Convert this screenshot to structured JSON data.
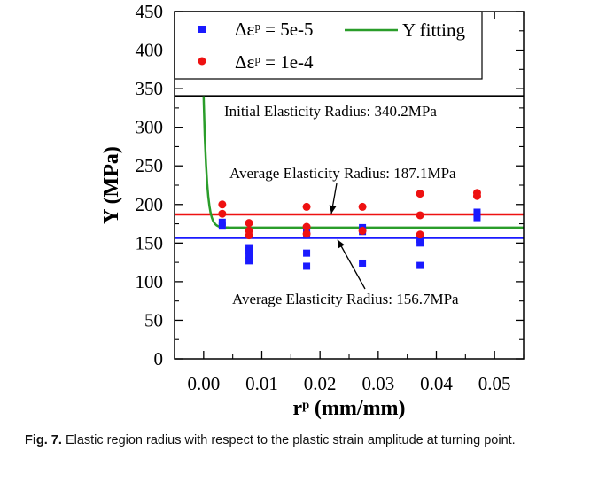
{
  "chart_data": {
    "type": "scatter",
    "xlabel": "rᵖ (mm/mm)",
    "ylabel": "Y (MPa)",
    "xlim": [
      -0.005,
      0.055
    ],
    "ylim": [
      0,
      450
    ],
    "x_ticks": [
      "0.00",
      "0.01",
      "0.02",
      "0.03",
      "0.04",
      "0.05"
    ],
    "y_ticks": [
      "0",
      "50",
      "100",
      "150",
      "200",
      "250",
      "300",
      "350",
      "400",
      "450"
    ],
    "grid": false,
    "legend_position": "top",
    "series": [
      {
        "name": "Δεᵖ = 5e-5",
        "marker": "square",
        "color": "#1a1aff",
        "points": [
          [
            0.0032,
            172
          ],
          [
            0.0032,
            177
          ],
          [
            0.0078,
            127
          ],
          [
            0.0078,
            134
          ],
          [
            0.0078,
            140
          ],
          [
            0.0078,
            144
          ],
          [
            0.0177,
            120
          ],
          [
            0.0177,
            137
          ],
          [
            0.0177,
            160
          ],
          [
            0.0177,
            164
          ],
          [
            0.0177,
            168
          ],
          [
            0.0273,
            124
          ],
          [
            0.0273,
            165
          ],
          [
            0.0273,
            170
          ],
          [
            0.0372,
            121
          ],
          [
            0.0372,
            150
          ],
          [
            0.0372,
            155
          ],
          [
            0.047,
            183
          ],
          [
            0.047,
            187
          ],
          [
            0.047,
            190
          ]
        ]
      },
      {
        "name": "Δεᵖ = 1e-4",
        "marker": "circle",
        "color": "#ee1111",
        "points": [
          [
            0.0032,
            188
          ],
          [
            0.0032,
            200
          ],
          [
            0.0078,
            160
          ],
          [
            0.0078,
            166
          ],
          [
            0.0078,
            176
          ],
          [
            0.0177,
            162
          ],
          [
            0.0177,
            171
          ],
          [
            0.0177,
            197
          ],
          [
            0.0273,
            166
          ],
          [
            0.0273,
            197
          ],
          [
            0.0372,
            161
          ],
          [
            0.0372,
            186
          ],
          [
            0.0372,
            214
          ],
          [
            0.047,
            211
          ],
          [
            0.047,
            215
          ]
        ]
      },
      {
        "name": "Y fitting",
        "type": "line",
        "color": "#2a9d2a",
        "equation": "Y = 170 + (340.2 - 170) * exp(-rp / 0.00055)"
      }
    ],
    "reference_lines": [
      {
        "value": 340.2,
        "color": "#000000",
        "label": "Initial Elasticity Radius: 340.2MPa"
      },
      {
        "value": 187.1,
        "color": "#ee1111",
        "label": "Average Elasticity Radius: 187.1MPa"
      },
      {
        "value": 156.7,
        "color": "#1a1aff",
        "label": "Average Elasticity Radius: 156.7MPa"
      }
    ]
  },
  "caption": {
    "label": "Fig. 7.",
    "text": "Elastic region radius with respect to the plastic strain amplitude at turning point."
  }
}
